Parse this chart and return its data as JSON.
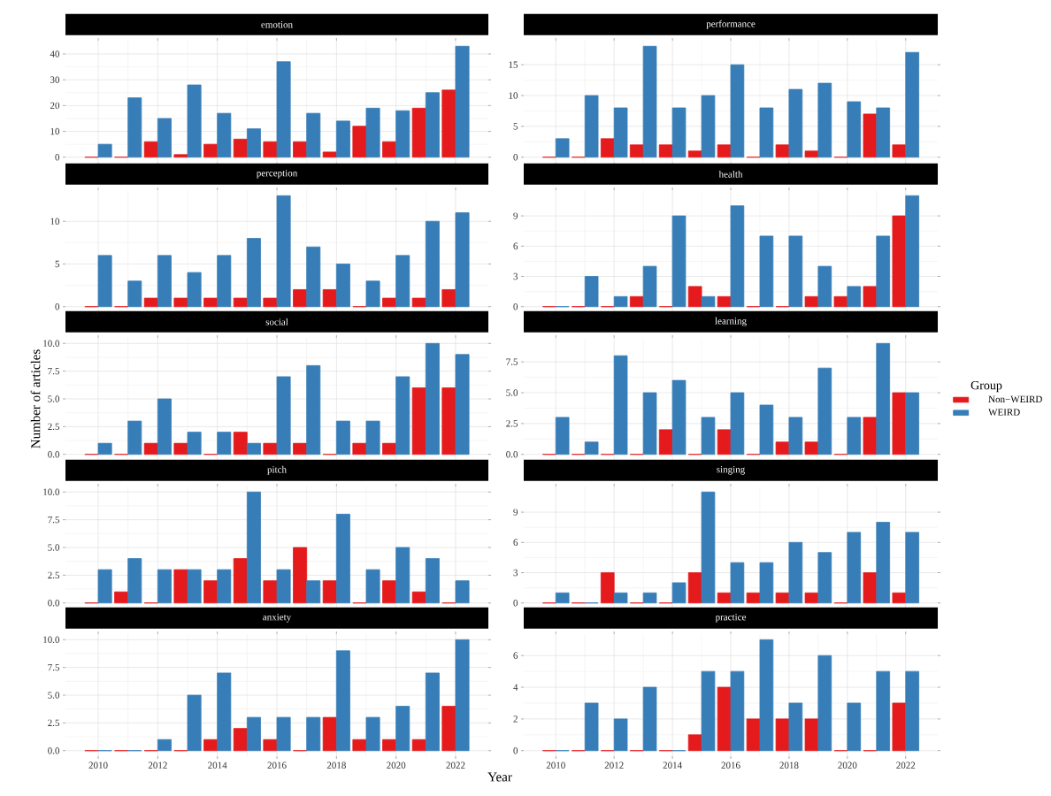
{
  "chart_data": [
    {
      "type": "bar",
      "title": "emotion",
      "x": [
        2010,
        2011,
        2012,
        2013,
        2014,
        2015,
        2016,
        2017,
        2018,
        2019,
        2020,
        2021,
        2022
      ],
      "xlim": [
        2008.9,
        2023.1
      ],
      "xticks": [
        2010,
        2012,
        2014,
        2016,
        2018,
        2020,
        2022
      ],
      "ylim": [
        -2.15,
        45.15
      ],
      "yticks": [
        0,
        10,
        20,
        30,
        40
      ],
      "grid": true,
      "tick_labels": "y",
      "series": [
        {
          "color": "#e41a1c",
          "values": [
            0,
            0,
            6,
            1,
            5,
            7,
            6,
            6,
            2,
            12,
            6,
            19,
            26
          ]
        },
        {
          "color": "#377eb8",
          "values": [
            5,
            23,
            15,
            28,
            17,
            11,
            37,
            17,
            14,
            19,
            18,
            25,
            43
          ]
        }
      ]
    },
    {
      "type": "bar",
      "title": "performance",
      "x": [
        2010,
        2011,
        2012,
        2013,
        2014,
        2015,
        2016,
        2017,
        2018,
        2019,
        2020,
        2021,
        2022
      ],
      "xlim": [
        2008.9,
        2023.1
      ],
      "xticks": [
        2010,
        2012,
        2014,
        2016,
        2018,
        2020,
        2022
      ],
      "ylim": [
        -0.9,
        18.9
      ],
      "yticks": [
        0,
        5,
        10,
        15
      ],
      "grid": true,
      "tick_labels": "y",
      "series": [
        {
          "color": "#e41a1c",
          "values": [
            0,
            0,
            3,
            2,
            2,
            1,
            2,
            0,
            2,
            1,
            0,
            7,
            2
          ]
        },
        {
          "color": "#377eb8",
          "values": [
            3,
            10,
            8,
            18,
            8,
            10,
            15,
            8,
            11,
            12,
            9,
            8,
            17
          ]
        }
      ]
    },
    {
      "type": "bar",
      "title": "perception",
      "x": [
        2010,
        2011,
        2012,
        2013,
        2014,
        2015,
        2016,
        2017,
        2018,
        2019,
        2020,
        2021,
        2022
      ],
      "xlim": [
        2008.9,
        2023.1
      ],
      "xticks": [
        2010,
        2012,
        2014,
        2016,
        2018,
        2020,
        2022
      ],
      "ylim": [
        -0.65,
        13.65
      ],
      "yticks": [
        0,
        5,
        10
      ],
      "grid": true,
      "tick_labels": "y",
      "series": [
        {
          "color": "#e41a1c",
          "values": [
            0,
            0,
            1,
            1,
            1,
            1,
            1,
            2,
            2,
            0,
            1,
            1,
            2
          ]
        },
        {
          "color": "#377eb8",
          "values": [
            6,
            3,
            6,
            4,
            6,
            8,
            13,
            7,
            5,
            3,
            6,
            10,
            11
          ]
        }
      ]
    },
    {
      "type": "bar",
      "title": "health",
      "x": [
        2010,
        2011,
        2012,
        2013,
        2014,
        2015,
        2016,
        2017,
        2018,
        2019,
        2020,
        2021,
        2022
      ],
      "xlim": [
        2008.9,
        2023.1
      ],
      "xticks": [
        2010,
        2012,
        2014,
        2016,
        2018,
        2020,
        2022
      ],
      "ylim": [
        -0.55,
        11.55
      ],
      "yticks": [
        0,
        3,
        6,
        9
      ],
      "grid": true,
      "tick_labels": "y",
      "series": [
        {
          "color": "#e41a1c",
          "values": [
            0,
            0,
            0,
            1,
            0,
            2,
            1,
            0,
            0,
            1,
            1,
            2,
            9
          ]
        },
        {
          "color": "#377eb8",
          "values": [
            0,
            3,
            1,
            4,
            9,
            1,
            10,
            7,
            7,
            4,
            2,
            7,
            11
          ]
        }
      ]
    },
    {
      "type": "bar",
      "title": "social",
      "ylabel": "Number of articles",
      "x": [
        2010,
        2011,
        2012,
        2013,
        2014,
        2015,
        2016,
        2017,
        2018,
        2019,
        2020,
        2021,
        2022
      ],
      "xlim": [
        2008.9,
        2023.1
      ],
      "xticks": [
        2010,
        2012,
        2014,
        2016,
        2018,
        2020,
        2022
      ],
      "ylim": [
        -0.5,
        10.5
      ],
      "yticks": [
        {
          "value": 0,
          "label": "0.0"
        },
        2.5,
        {
          "value": 5,
          "label": "5.0"
        },
        7.5,
        {
          "value": 10,
          "label": "10.0"
        }
      ],
      "grid": true,
      "tick_labels": "y",
      "series": [
        {
          "color": "#e41a1c",
          "values": [
            0,
            0,
            1,
            1,
            0,
            2,
            1,
            1,
            0,
            1,
            1,
            6,
            6
          ]
        },
        {
          "color": "#377eb8",
          "values": [
            1,
            3,
            5,
            2,
            2,
            1,
            7,
            8,
            3,
            3,
            7,
            10,
            9
          ]
        }
      ]
    },
    {
      "type": "bar",
      "title": "learning",
      "legend": "right",
      "legend_title": "Group",
      "x": [
        2010,
        2011,
        2012,
        2013,
        2014,
        2015,
        2016,
        2017,
        2018,
        2019,
        2020,
        2021,
        2022
      ],
      "xlim": [
        2008.9,
        2023.1
      ],
      "xticks": [
        2010,
        2012,
        2014,
        2016,
        2018,
        2020,
        2022
      ],
      "ylim": [
        -0.45,
        9.45
      ],
      "yticks": [
        {
          "value": 0,
          "label": "0.0"
        },
        2.5,
        {
          "value": 5,
          "label": "5.0"
        },
        7.5
      ],
      "grid": true,
      "tick_labels": "y",
      "series": [
        {
          "name": "Non−WEIRD",
          "color": "#e41a1c",
          "values": [
            0,
            0,
            0,
            0,
            2,
            0,
            2,
            0,
            1,
            1,
            0,
            3,
            5
          ]
        },
        {
          "name": "WEIRD",
          "color": "#377eb8",
          "values": [
            3,
            1,
            8,
            5,
            6,
            3,
            5,
            4,
            3,
            7,
            3,
            9,
            5
          ]
        }
      ]
    },
    {
      "type": "bar",
      "title": "pitch",
      "x": [
        2010,
        2011,
        2012,
        2013,
        2014,
        2015,
        2016,
        2017,
        2018,
        2019,
        2020,
        2021,
        2022
      ],
      "xlim": [
        2008.9,
        2023.1
      ],
      "xticks": [
        2010,
        2012,
        2014,
        2016,
        2018,
        2020,
        2022
      ],
      "ylim": [
        -0.5,
        10.5
      ],
      "yticks": [
        {
          "value": 0,
          "label": "0.0"
        },
        2.5,
        {
          "value": 5,
          "label": "5.0"
        },
        7.5,
        {
          "value": 10,
          "label": "10.0"
        }
      ],
      "grid": true,
      "tick_labels": "y",
      "series": [
        {
          "color": "#e41a1c",
          "values": [
            0,
            1,
            0,
            3,
            2,
            4,
            2,
            5,
            2,
            0,
            2,
            1,
            0
          ]
        },
        {
          "color": "#377eb8",
          "values": [
            3,
            4,
            3,
            3,
            3,
            10,
            3,
            2,
            8,
            3,
            5,
            4,
            2
          ]
        }
      ]
    },
    {
      "type": "bar",
      "title": "singing",
      "x": [
        2010,
        2011,
        2012,
        2013,
        2014,
        2015,
        2016,
        2017,
        2018,
        2019,
        2020,
        2021,
        2022
      ],
      "xlim": [
        2008.9,
        2023.1
      ],
      "xticks": [
        2010,
        2012,
        2014,
        2016,
        2018,
        2020,
        2022
      ],
      "ylim": [
        -0.55,
        11.55
      ],
      "yticks": [
        0,
        3,
        6,
        9
      ],
      "grid": true,
      "tick_labels": "y",
      "series": [
        {
          "color": "#e41a1c",
          "values": [
            0,
            0,
            3,
            0,
            0,
            3,
            1,
            1,
            1,
            1,
            0,
            3,
            1
          ]
        },
        {
          "color": "#377eb8",
          "values": [
            1,
            0,
            1,
            1,
            2,
            11,
            4,
            4,
            6,
            5,
            7,
            8,
            7
          ]
        }
      ]
    },
    {
      "type": "bar",
      "title": "anxiety",
      "x": [
        2010,
        2011,
        2012,
        2013,
        2014,
        2015,
        2016,
        2017,
        2018,
        2019,
        2020,
        2021,
        2022
      ],
      "xlim": [
        2008.9,
        2023.1
      ],
      "xticks": [
        2010,
        2012,
        2014,
        2016,
        2018,
        2020,
        2022
      ],
      "ylim": [
        -0.5,
        10.5
      ],
      "yticks": [
        {
          "value": 0,
          "label": "0.0"
        },
        2.5,
        {
          "value": 5,
          "label": "5.0"
        },
        7.5,
        {
          "value": 10,
          "label": "10.0"
        }
      ],
      "grid": true,
      "series": [
        {
          "color": "#e41a1c",
          "values": [
            0,
            0,
            0,
            0,
            1,
            2,
            1,
            0,
            3,
            1,
            1,
            1,
            4
          ]
        },
        {
          "color": "#377eb8",
          "values": [
            0,
            0,
            1,
            5,
            7,
            3,
            3,
            3,
            9,
            3,
            4,
            7,
            10
          ]
        }
      ]
    },
    {
      "type": "bar",
      "title": "practice",
      "xlabel": "Year",
      "x": [
        2010,
        2011,
        2012,
        2013,
        2014,
        2015,
        2016,
        2017,
        2018,
        2019,
        2020,
        2021,
        2022
      ],
      "xlim": [
        2008.9,
        2023.1
      ],
      "xticks": [
        2010,
        2012,
        2014,
        2016,
        2018,
        2020,
        2022
      ],
      "ylim": [
        -0.35,
        7.35
      ],
      "yticks": [
        0,
        2,
        4,
        6
      ],
      "grid": true,
      "series": [
        {
          "color": "#e41a1c",
          "values": [
            0,
            0,
            0,
            0,
            0,
            1,
            4,
            2,
            2,
            2,
            0,
            0,
            3
          ]
        },
        {
          "color": "#377eb8",
          "values": [
            0,
            3,
            2,
            4,
            0,
            5,
            5,
            7,
            3,
            6,
            3,
            5,
            5
          ]
        }
      ]
    }
  ]
}
